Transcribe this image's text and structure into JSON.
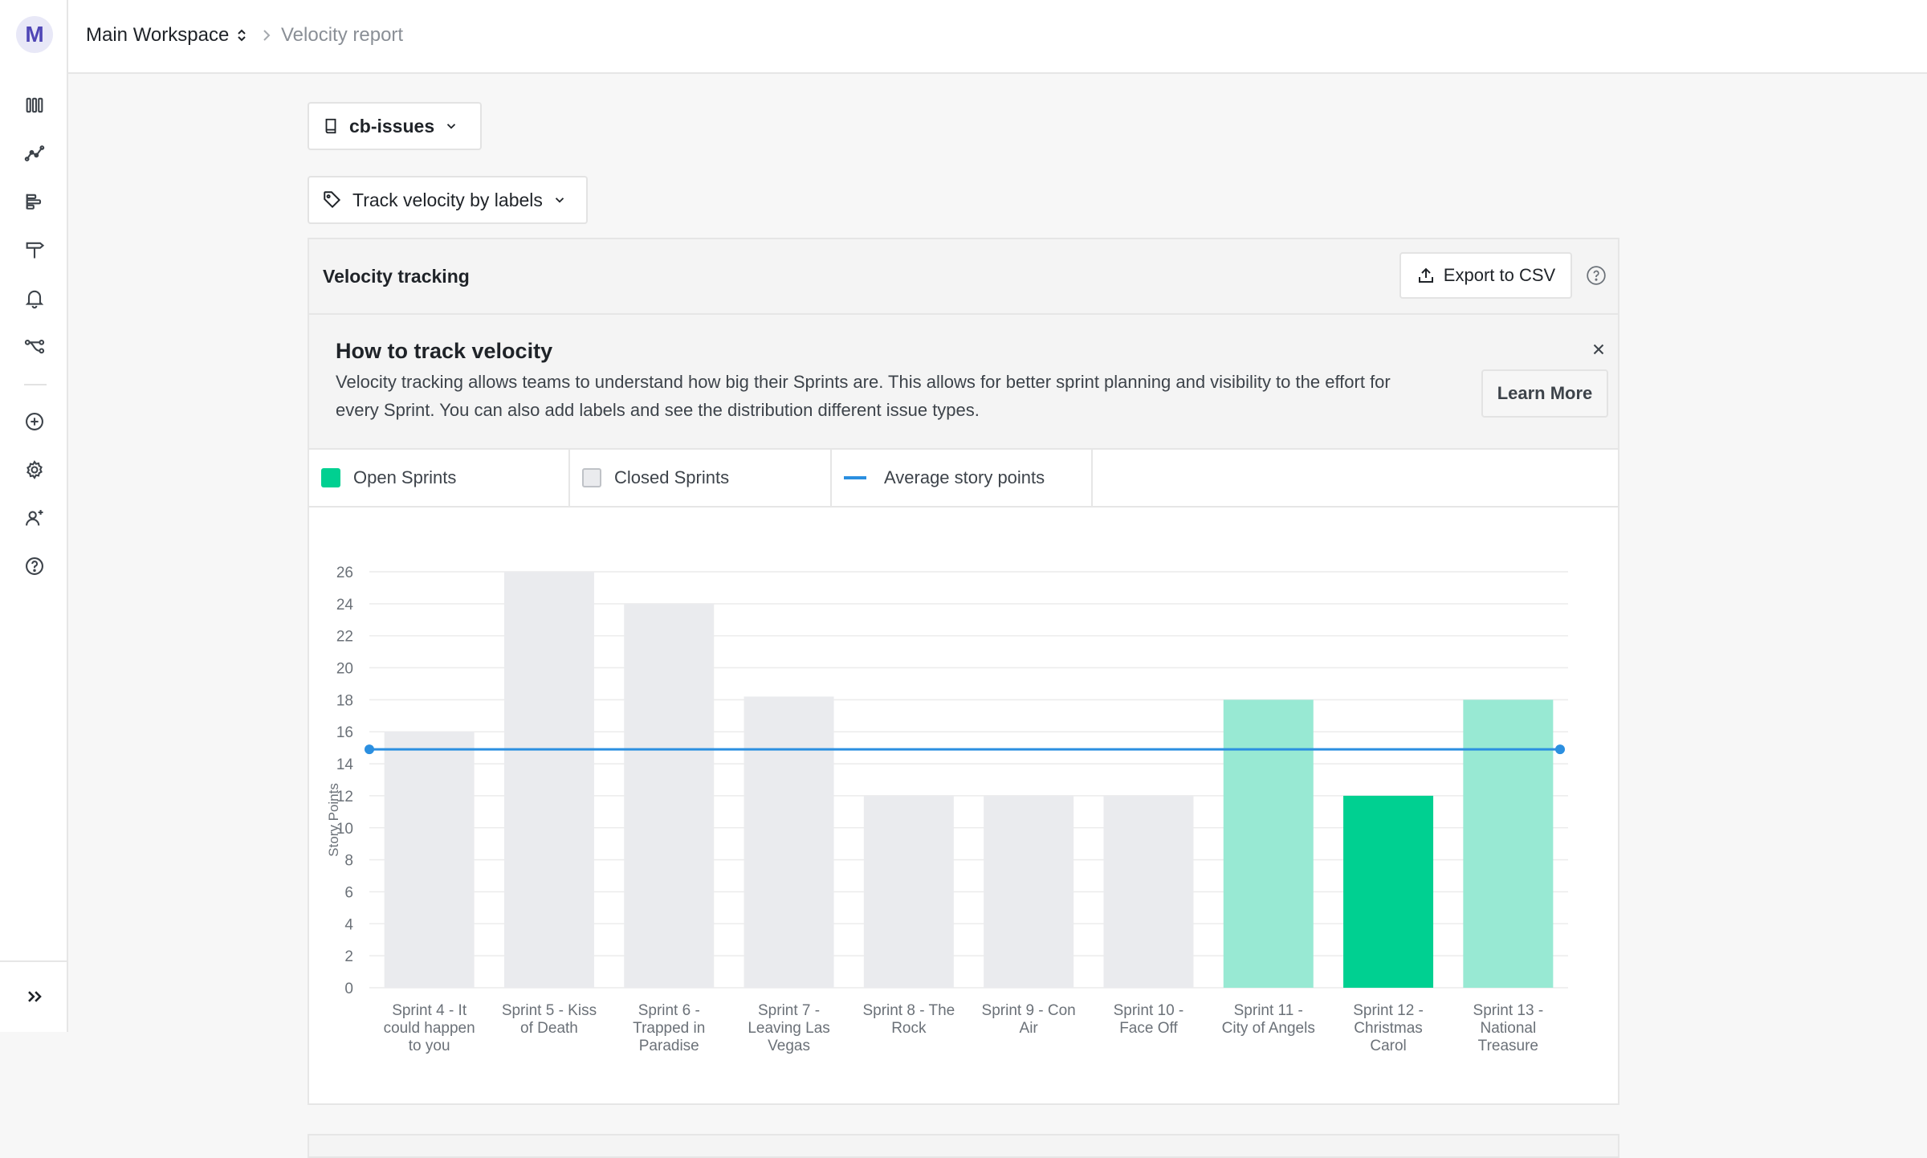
{
  "workspace": {
    "avatar_letter": "M",
    "name": "Main Workspace"
  },
  "breadcrumb": {
    "current_page": "Velocity report"
  },
  "sidebar": {
    "icons": [
      "board-icon",
      "analytics-icon",
      "roadmap-icon",
      "signpost-icon",
      "bell-icon",
      "workflow-icon",
      "add-circle-icon",
      "gear-icon",
      "add-user-icon",
      "help-icon"
    ],
    "expand_icon": "double-chevron-right-icon"
  },
  "filters": {
    "repo": "cb-issues",
    "labels": "Track velocity by labels"
  },
  "panel": {
    "title": "Velocity tracking",
    "export_label": "Export to CSV"
  },
  "info": {
    "title": "How to track velocity",
    "text": "Velocity tracking allows teams to understand how big their Sprints are. This allows for better sprint planning and visibility to the effort for every Sprint. You can also add labels and see the distribution different issue types.",
    "learn_more": "Learn More"
  },
  "legend": {
    "open": "Open Sprints",
    "closed": "Closed Sprints",
    "average": "Average story points"
  },
  "colors": {
    "open": "#00d091",
    "open_light": "#98e9d3",
    "closed": "#eaebee",
    "average": "#2b8fe0"
  },
  "chart_data": {
    "type": "bar",
    "ylabel": "Story Points",
    "ylim": [
      0,
      26
    ],
    "yticks": [
      0,
      2,
      4,
      6,
      8,
      10,
      12,
      14,
      16,
      18,
      20,
      22,
      24,
      26
    ],
    "grid": true,
    "categories": [
      [
        "Sprint 4 - It",
        "could happen",
        "to you"
      ],
      [
        "Sprint 5 - Kiss",
        "of Death"
      ],
      [
        "Sprint 6 -",
        "Trapped in",
        "Paradise"
      ],
      [
        "Sprint 7 -",
        "Leaving Las",
        "Vegas"
      ],
      [
        "Sprint 8 - The",
        "Rock"
      ],
      [
        "Sprint 9 - Con",
        "Air"
      ],
      [
        "Sprint 10 -",
        "Face Off"
      ],
      [
        "Sprint 11 -",
        "City of Angels"
      ],
      [
        "Sprint 12 -",
        "Christmas",
        "Carol"
      ],
      [
        "Sprint 13 -",
        "National",
        "Treasure"
      ]
    ],
    "values": [
      16,
      26,
      24,
      18.2,
      12,
      12,
      12,
      18,
      12,
      18
    ],
    "status": [
      "closed",
      "closed",
      "closed",
      "closed",
      "closed",
      "closed",
      "closed",
      "open-light",
      "open",
      "open-light"
    ],
    "average": 14.9
  }
}
